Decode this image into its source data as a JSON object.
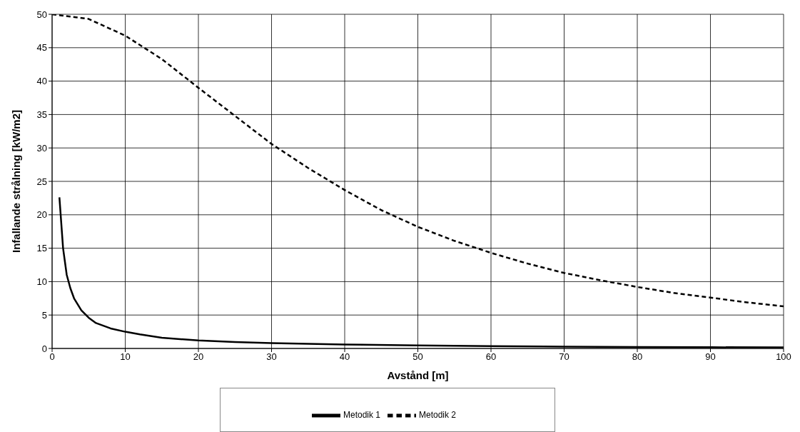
{
  "chart_data": {
    "type": "line",
    "xlabel": "Avstånd [m]",
    "ylabel": "Infallande strålning [kW/m2]",
    "xlim": [
      0,
      100
    ],
    "xticks": [
      0,
      10,
      20,
      30,
      40,
      50,
      60,
      70,
      80,
      90,
      100
    ],
    "ylim": [
      0,
      50
    ],
    "yticks": [
      0,
      5,
      10,
      15,
      20,
      25,
      30,
      35,
      40,
      45,
      50
    ],
    "grid": true,
    "legend": "bottom",
    "marker": "none",
    "series": [
      {
        "name": "Metodik 1",
        "color": "#000000",
        "line_style": "solid",
        "x": [
          1,
          1.5,
          2,
          2.5,
          3,
          4,
          5,
          6,
          8,
          10,
          12,
          15,
          20,
          25,
          30,
          40,
          50,
          60,
          70,
          80,
          90,
          100
        ],
        "values": [
          22.6,
          15,
          11,
          9,
          7.5,
          5.7,
          4.6,
          3.8,
          3,
          2.5,
          2.1,
          1.6,
          1.2,
          0.95,
          0.8,
          0.6,
          0.45,
          0.35,
          0.28,
          0.22,
          0.18,
          0.15
        ]
      },
      {
        "name": "Metodik 2",
        "color": "#000000",
        "line_style": "dashed",
        "x": [
          0,
          5,
          10,
          15,
          20,
          25,
          30,
          35,
          40,
          45,
          50,
          55,
          60,
          65,
          70,
          75,
          80,
          85,
          90,
          95,
          100
        ],
        "values": [
          50,
          49.3,
          46.8,
          43.3,
          39,
          34.8,
          30.6,
          27,
          23.7,
          20.7,
          18.2,
          16.1,
          14.3,
          12.7,
          11.3,
          10.2,
          9.2,
          8.3,
          7.6,
          6.9,
          6.3
        ]
      }
    ]
  }
}
